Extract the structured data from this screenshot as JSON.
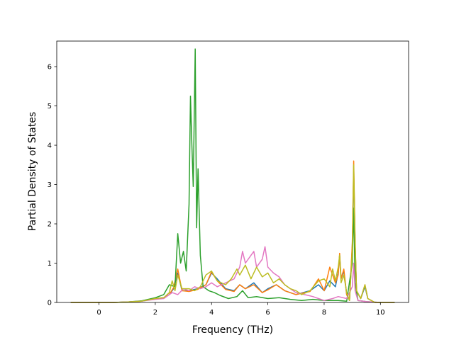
{
  "chart_data": {
    "type": "line",
    "title": "",
    "xlabel": "Frequency (THz)",
    "ylabel": "Partial Density of States",
    "xlim": [
      -1.5,
      11.0
    ],
    "ylim": [
      0,
      6.65
    ],
    "xticks": [
      0,
      2,
      4,
      6,
      8,
      10
    ],
    "yticks": [
      0,
      1,
      2,
      3,
      4,
      5,
      6
    ],
    "grid": false,
    "legend": "none",
    "series": [
      {
        "color": "#1f77b4",
        "points": [
          [
            -1.0,
            0
          ],
          [
            0.5,
            0
          ],
          [
            1.0,
            0.01
          ],
          [
            1.5,
            0.03
          ],
          [
            2.0,
            0.1
          ],
          [
            2.3,
            0.12
          ],
          [
            2.5,
            0.2
          ],
          [
            2.65,
            0.35
          ],
          [
            2.8,
            0.75
          ],
          [
            2.95,
            0.3
          ],
          [
            3.2,
            0.3
          ],
          [
            3.5,
            0.35
          ],
          [
            3.8,
            0.45
          ],
          [
            4.0,
            0.75
          ],
          [
            4.2,
            0.6
          ],
          [
            4.5,
            0.35
          ],
          [
            4.8,
            0.3
          ],
          [
            5.0,
            0.45
          ],
          [
            5.2,
            0.35
          ],
          [
            5.5,
            0.5
          ],
          [
            5.8,
            0.25
          ],
          [
            6.0,
            0.35
          ],
          [
            6.3,
            0.45
          ],
          [
            6.6,
            0.3
          ],
          [
            7.0,
            0.2
          ],
          [
            7.5,
            0.3
          ],
          [
            7.8,
            0.45
          ],
          [
            8.0,
            0.3
          ],
          [
            8.2,
            0.55
          ],
          [
            8.4,
            0.4
          ],
          [
            8.5,
            0.75
          ],
          [
            8.55,
            1.2
          ],
          [
            8.6,
            0.6
          ],
          [
            8.7,
            0.8
          ],
          [
            8.8,
            0.2
          ],
          [
            8.9,
            0.05
          ],
          [
            9.0,
            1.4
          ],
          [
            9.05,
            3.3
          ],
          [
            9.1,
            1.5
          ],
          [
            9.15,
            0.3
          ],
          [
            9.3,
            0.1
          ],
          [
            9.45,
            0.4
          ],
          [
            9.55,
            0.1
          ],
          [
            9.8,
            0
          ],
          [
            10.5,
            0
          ]
        ]
      },
      {
        "color": "#ff7f0e",
        "points": [
          [
            -1.0,
            0
          ],
          [
            0.5,
            0
          ],
          [
            1.0,
            0.01
          ],
          [
            1.5,
            0.03
          ],
          [
            2.0,
            0.1
          ],
          [
            2.3,
            0.12
          ],
          [
            2.5,
            0.2
          ],
          [
            2.65,
            0.38
          ],
          [
            2.8,
            0.85
          ],
          [
            2.95,
            0.3
          ],
          [
            3.2,
            0.28
          ],
          [
            3.5,
            0.33
          ],
          [
            3.8,
            0.45
          ],
          [
            4.0,
            0.78
          ],
          [
            4.2,
            0.55
          ],
          [
            4.5,
            0.33
          ],
          [
            4.8,
            0.28
          ],
          [
            5.0,
            0.45
          ],
          [
            5.2,
            0.35
          ],
          [
            5.5,
            0.45
          ],
          [
            5.8,
            0.25
          ],
          [
            6.0,
            0.32
          ],
          [
            6.3,
            0.45
          ],
          [
            6.6,
            0.3
          ],
          [
            7.0,
            0.2
          ],
          [
            7.5,
            0.28
          ],
          [
            7.8,
            0.6
          ],
          [
            8.0,
            0.3
          ],
          [
            8.2,
            0.9
          ],
          [
            8.4,
            0.5
          ],
          [
            8.5,
            0.7
          ],
          [
            8.55,
            1.25
          ],
          [
            8.6,
            0.6
          ],
          [
            8.7,
            0.85
          ],
          [
            8.8,
            0.2
          ],
          [
            8.9,
            0.05
          ],
          [
            9.0,
            1.5
          ],
          [
            9.05,
            3.6
          ],
          [
            9.1,
            1.6
          ],
          [
            9.15,
            0.3
          ],
          [
            9.3,
            0.1
          ],
          [
            9.45,
            0.45
          ],
          [
            9.55,
            0.1
          ],
          [
            9.8,
            0
          ],
          [
            10.5,
            0
          ]
        ]
      },
      {
        "color": "#2ca02c",
        "points": [
          [
            -1.0,
            0
          ],
          [
            0.5,
            0
          ],
          [
            1.0,
            0.01
          ],
          [
            1.5,
            0.04
          ],
          [
            2.0,
            0.12
          ],
          [
            2.3,
            0.2
          ],
          [
            2.5,
            0.45
          ],
          [
            2.7,
            0.4
          ],
          [
            2.8,
            1.75
          ],
          [
            2.9,
            1.0
          ],
          [
            3.0,
            1.3
          ],
          [
            3.1,
            0.8
          ],
          [
            3.2,
            2.5
          ],
          [
            3.25,
            5.25
          ],
          [
            3.3,
            4.0
          ],
          [
            3.35,
            2.95
          ],
          [
            3.42,
            6.45
          ],
          [
            3.47,
            1.9
          ],
          [
            3.52,
            3.4
          ],
          [
            3.6,
            1.2
          ],
          [
            3.7,
            0.4
          ],
          [
            3.9,
            0.3
          ],
          [
            4.1,
            0.25
          ],
          [
            4.3,
            0.18
          ],
          [
            4.6,
            0.1
          ],
          [
            4.9,
            0.15
          ],
          [
            5.1,
            0.3
          ],
          [
            5.3,
            0.12
          ],
          [
            5.6,
            0.15
          ],
          [
            6.0,
            0.1
          ],
          [
            6.4,
            0.12
          ],
          [
            6.8,
            0.08
          ],
          [
            7.2,
            0.05
          ],
          [
            7.6,
            0.08
          ],
          [
            8.0,
            0.05
          ],
          [
            8.5,
            0.05
          ],
          [
            8.8,
            0.03
          ],
          [
            9.0,
            1.0
          ],
          [
            9.05,
            2.4
          ],
          [
            9.1,
            0.5
          ],
          [
            9.2,
            0.05
          ],
          [
            9.5,
            0.02
          ],
          [
            10.0,
            0
          ],
          [
            10.5,
            0
          ]
        ]
      },
      {
        "color": "#e377c2",
        "points": [
          [
            -1.0,
            0
          ],
          [
            0.5,
            0
          ],
          [
            1.0,
            0.01
          ],
          [
            1.5,
            0.03
          ],
          [
            2.0,
            0.08
          ],
          [
            2.3,
            0.1
          ],
          [
            2.6,
            0.25
          ],
          [
            2.8,
            0.2
          ],
          [
            3.0,
            0.35
          ],
          [
            3.2,
            0.3
          ],
          [
            3.4,
            0.4
          ],
          [
            3.6,
            0.35
          ],
          [
            3.8,
            0.4
          ],
          [
            4.0,
            0.5
          ],
          [
            4.2,
            0.4
          ],
          [
            4.5,
            0.5
          ],
          [
            4.8,
            0.6
          ],
          [
            5.0,
            0.9
          ],
          [
            5.1,
            1.3
          ],
          [
            5.2,
            1.0
          ],
          [
            5.4,
            1.2
          ],
          [
            5.5,
            1.3
          ],
          [
            5.6,
            0.9
          ],
          [
            5.8,
            1.1
          ],
          [
            5.9,
            1.42
          ],
          [
            6.0,
            0.9
          ],
          [
            6.2,
            0.75
          ],
          [
            6.4,
            0.65
          ],
          [
            6.6,
            0.45
          ],
          [
            6.8,
            0.35
          ],
          [
            7.0,
            0.25
          ],
          [
            7.3,
            0.2
          ],
          [
            7.6,
            0.15
          ],
          [
            7.8,
            0.1
          ],
          [
            8.0,
            0.05
          ],
          [
            8.3,
            0.1
          ],
          [
            8.5,
            0.15
          ],
          [
            8.8,
            0.1
          ],
          [
            9.0,
            0.4
          ],
          [
            9.05,
            1.0
          ],
          [
            9.1,
            0.3
          ],
          [
            9.2,
            0.05
          ],
          [
            9.5,
            0.02
          ],
          [
            10.0,
            0
          ],
          [
            10.5,
            0
          ]
        ]
      },
      {
        "color": "#bcbd22",
        "points": [
          [
            -1.0,
            0
          ],
          [
            0.5,
            0
          ],
          [
            1.0,
            0.01
          ],
          [
            1.5,
            0.03
          ],
          [
            2.0,
            0.1
          ],
          [
            2.3,
            0.12
          ],
          [
            2.5,
            0.25
          ],
          [
            2.6,
            0.55
          ],
          [
            2.7,
            0.3
          ],
          [
            2.8,
            0.7
          ],
          [
            2.95,
            0.35
          ],
          [
            3.2,
            0.35
          ],
          [
            3.4,
            0.3
          ],
          [
            3.6,
            0.4
          ],
          [
            3.8,
            0.7
          ],
          [
            4.0,
            0.8
          ],
          [
            4.2,
            0.55
          ],
          [
            4.5,
            0.45
          ],
          [
            4.7,
            0.6
          ],
          [
            4.9,
            0.85
          ],
          [
            5.0,
            0.7
          ],
          [
            5.2,
            0.95
          ],
          [
            5.4,
            0.6
          ],
          [
            5.6,
            0.9
          ],
          [
            5.8,
            0.65
          ],
          [
            6.0,
            0.75
          ],
          [
            6.2,
            0.5
          ],
          [
            6.4,
            0.6
          ],
          [
            6.6,
            0.45
          ],
          [
            6.8,
            0.35
          ],
          [
            7.0,
            0.3
          ],
          [
            7.2,
            0.2
          ],
          [
            7.5,
            0.3
          ],
          [
            7.8,
            0.55
          ],
          [
            8.0,
            0.6
          ],
          [
            8.2,
            0.4
          ],
          [
            8.3,
            0.85
          ],
          [
            8.4,
            0.55
          ],
          [
            8.5,
            0.9
          ],
          [
            8.55,
            1.2
          ],
          [
            8.6,
            0.5
          ],
          [
            8.7,
            0.7
          ],
          [
            8.8,
            0.25
          ],
          [
            8.9,
            0.05
          ],
          [
            9.0,
            1.3
          ],
          [
            9.05,
            3.5
          ],
          [
            9.1,
            1.5
          ],
          [
            9.15,
            0.3
          ],
          [
            9.3,
            0.1
          ],
          [
            9.45,
            0.45
          ],
          [
            9.55,
            0.1
          ],
          [
            9.8,
            0
          ],
          [
            10.5,
            0
          ]
        ]
      }
    ]
  }
}
